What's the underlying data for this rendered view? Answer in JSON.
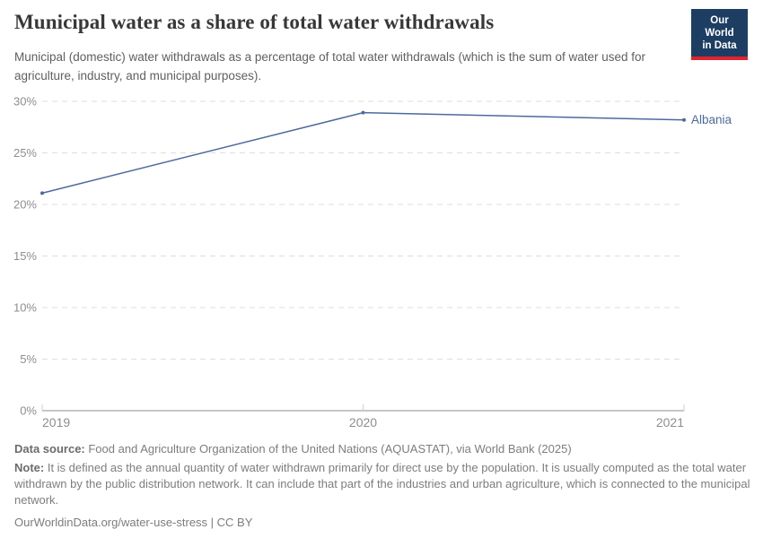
{
  "header": {
    "title": "Municipal water as a share of total water withdrawals",
    "subtitle": "Municipal (domestic) water withdrawals as a percentage of total water withdrawals (which is the sum of water used for agriculture, industry, and municipal purposes).",
    "logo": {
      "line1": "Our World",
      "line2": "in Data",
      "bg_color": "#1d3d63",
      "accent_color": "#e0232d"
    }
  },
  "chart_data": {
    "type": "line",
    "x": [
      2019,
      2020,
      2021
    ],
    "xticks": [
      "2019",
      "2020",
      "2021"
    ],
    "yticks": [
      "0%",
      "5%",
      "10%",
      "15%",
      "20%",
      "25%",
      "30%"
    ],
    "ylim": [
      0,
      30
    ],
    "series": [
      {
        "name": "Albania",
        "values": [
          21.1,
          28.9,
          28.2
        ],
        "color": "#4C6A9C"
      }
    ],
    "grid": "horizontal-dashed",
    "legend_position": "end-of-line-label",
    "colors": {
      "gridline": "#dedede",
      "axis": "#b3b3b3",
      "tick_label": "#8e8e8e"
    }
  },
  "footer": {
    "data_source_label": "Data source:",
    "data_source_text": " Food and Agriculture Organization of the United Nations (AQUASTAT), via World Bank (2025)",
    "note_label": "Note:",
    "note_text": " It is defined as the annual quantity of water withdrawn primarily for direct use by the population. It is usually computed as the total water withdrawn by the public distribution network. It can include that part of the industries and urban agriculture, which is connected to the municipal network.",
    "citation_text": "OurWorldinData.org/water-use-stress | CC BY"
  }
}
